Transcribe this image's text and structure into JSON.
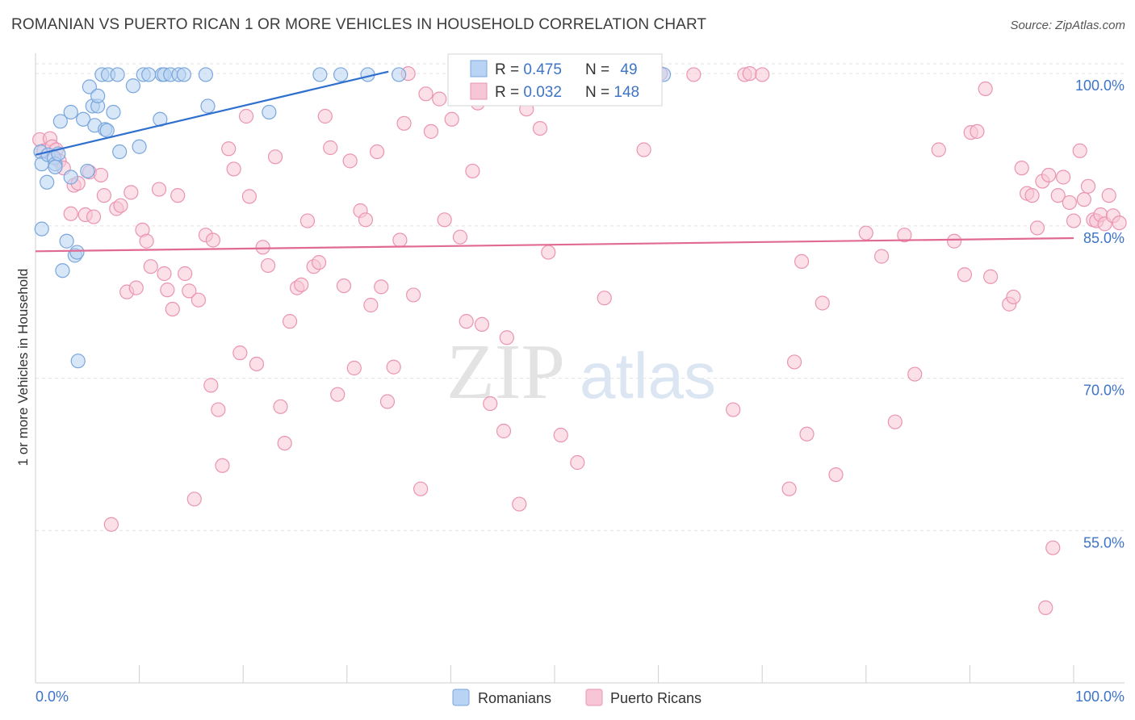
{
  "header": {
    "title": "ROMANIAN VS PUERTO RICAN 1 OR MORE VEHICLES IN HOUSEHOLD CORRELATION CHART",
    "source": "Source: ZipAtlas.com"
  },
  "watermark": {
    "zip": "ZIP",
    "atlas": "atlas"
  },
  "colors": {
    "romanian_fill": "#b8d3f3",
    "romanian_stroke": "#7aa6dc",
    "romanian_line": "#2f6fce",
    "puerto_fill": "#f7c6d6",
    "puerto_stroke": "#ea94b2",
    "puerto_line": "#e06a93",
    "axis_value": "#3e74c7",
    "grid": "#e2e2e2"
  },
  "legend": {
    "rows": [
      {
        "r_label": "R = ",
        "r_value": "0.475",
        "n_label": "N = ",
        "n_value": "49"
      },
      {
        "r_label": "R = ",
        "r_value": "0.032",
        "n_label": "N = ",
        "n_value": "148"
      }
    ]
  },
  "bottom_legend": {
    "series1": "Romanians",
    "series2": "Puerto Ricans"
  },
  "chart_data": {
    "type": "scatter",
    "title": "ROMANIAN VS PUERTO RICAN 1 OR MORE VEHICLES IN HOUSEHOLD CORRELATION CHART",
    "xlabel": "",
    "ylabel": "1 or more Vehicles in Household",
    "xlim": [
      0,
      100
    ],
    "ylim": [
      40,
      102
    ],
    "x_tick_labels": [
      "0.0%",
      "100.0%"
    ],
    "y_ticks": [
      100,
      85,
      70,
      55
    ],
    "y_tick_labels": [
      "100.0%",
      "85.0%",
      "70.0%",
      "55.0%"
    ],
    "grid": true,
    "series": [
      {
        "name": "Romanians",
        "R": 0.475,
        "N": 49,
        "trend": [
          [
            0,
            92.0
          ],
          [
            34,
            100.2
          ]
        ],
        "points": [
          [
            0.5,
            92.3
          ],
          [
            0.6,
            84.7
          ],
          [
            0.6,
            91.1
          ],
          [
            1.1,
            89.3
          ],
          [
            1.2,
            92.0
          ],
          [
            1.8,
            91.7
          ],
          [
            1.9,
            91.1
          ],
          [
            1.9,
            90.8
          ],
          [
            2.2,
            92.1
          ],
          [
            2.4,
            95.3
          ],
          [
            2.6,
            80.6
          ],
          [
            3.0,
            83.5
          ],
          [
            3.4,
            96.2
          ],
          [
            3.4,
            89.8
          ],
          [
            3.8,
            82.1
          ],
          [
            4.0,
            82.4
          ],
          [
            4.1,
            71.7
          ],
          [
            4.6,
            95.5
          ],
          [
            5.0,
            90.4
          ],
          [
            5.2,
            98.7
          ],
          [
            5.5,
            96.8
          ],
          [
            5.7,
            94.9
          ],
          [
            6.0,
            96.8
          ],
          [
            6.0,
            97.8
          ],
          [
            6.4,
            99.9
          ],
          [
            6.7,
            94.5
          ],
          [
            6.9,
            94.4
          ],
          [
            7.0,
            99.9
          ],
          [
            7.5,
            96.2
          ],
          [
            7.9,
            99.9
          ],
          [
            8.1,
            92.3
          ],
          [
            9.4,
            98.8
          ],
          [
            10.0,
            92.8
          ],
          [
            10.4,
            99.9
          ],
          [
            10.9,
            99.9
          ],
          [
            12.0,
            95.5
          ],
          [
            12.2,
            99.9
          ],
          [
            12.4,
            99.9
          ],
          [
            13.0,
            99.9
          ],
          [
            13.8,
            99.9
          ],
          [
            14.3,
            99.9
          ],
          [
            16.4,
            99.9
          ],
          [
            16.6,
            96.8
          ],
          [
            22.5,
            96.2
          ],
          [
            27.4,
            99.9
          ],
          [
            29.4,
            99.9
          ],
          [
            32.0,
            99.9
          ],
          [
            35.0,
            99.9
          ],
          [
            60.5,
            99.9
          ]
        ]
      },
      {
        "name": "Puerto Ricans",
        "R": 0.032,
        "N": 148,
        "trend": [
          [
            0,
            82.5
          ],
          [
            100,
            83.8
          ]
        ],
        "points": [
          [
            0.4,
            93.5
          ],
          [
            0.8,
            92.4
          ],
          [
            1.4,
            93.6
          ],
          [
            1.6,
            92.8
          ],
          [
            2.0,
            92.5
          ],
          [
            2.3,
            91.4
          ],
          [
            2.7,
            90.7
          ],
          [
            3.4,
            86.2
          ],
          [
            3.7,
            89.0
          ],
          [
            4.1,
            89.2
          ],
          [
            4.8,
            86.1
          ],
          [
            5.2,
            90.3
          ],
          [
            5.6,
            85.9
          ],
          [
            6.3,
            90.0
          ],
          [
            6.6,
            88.0
          ],
          [
            7.3,
            55.6
          ],
          [
            7.8,
            86.7
          ],
          [
            8.2,
            87.0
          ],
          [
            8.8,
            78.5
          ],
          [
            9.2,
            88.3
          ],
          [
            9.7,
            78.9
          ],
          [
            10.3,
            84.6
          ],
          [
            10.7,
            83.5
          ],
          [
            11.1,
            81.0
          ],
          [
            11.9,
            88.6
          ],
          [
            12.4,
            80.3
          ],
          [
            12.7,
            78.7
          ],
          [
            13.2,
            76.8
          ],
          [
            13.7,
            88.0
          ],
          [
            14.4,
            80.3
          ],
          [
            14.8,
            78.6
          ],
          [
            15.3,
            58.1
          ],
          [
            15.7,
            77.7
          ],
          [
            16.4,
            84.1
          ],
          [
            16.9,
            69.3
          ],
          [
            17.1,
            83.6
          ],
          [
            17.6,
            66.9
          ],
          [
            18.0,
            61.4
          ],
          [
            18.6,
            92.6
          ],
          [
            19.1,
            90.6
          ],
          [
            19.7,
            72.5
          ],
          [
            20.3,
            95.8
          ],
          [
            20.6,
            87.9
          ],
          [
            21.3,
            71.4
          ],
          [
            21.9,
            82.9
          ],
          [
            22.4,
            81.1
          ],
          [
            23.1,
            91.8
          ],
          [
            23.6,
            67.2
          ],
          [
            24.0,
            63.6
          ],
          [
            24.5,
            75.6
          ],
          [
            25.2,
            78.9
          ],
          [
            25.6,
            79.2
          ],
          [
            26.2,
            85.5
          ],
          [
            26.8,
            81.0
          ],
          [
            27.3,
            81.4
          ],
          [
            27.9,
            95.8
          ],
          [
            28.4,
            92.7
          ],
          [
            29.1,
            68.4
          ],
          [
            29.7,
            79.1
          ],
          [
            30.3,
            91.4
          ],
          [
            30.7,
            71.0
          ],
          [
            31.3,
            86.5
          ],
          [
            31.8,
            85.6
          ],
          [
            32.3,
            77.2
          ],
          [
            32.9,
            92.3
          ],
          [
            33.3,
            79.0
          ],
          [
            33.9,
            67.7
          ],
          [
            34.5,
            71.1
          ],
          [
            35.1,
            83.6
          ],
          [
            35.5,
            95.1
          ],
          [
            35.9,
            100.0
          ],
          [
            36.4,
            78.2
          ],
          [
            37.1,
            59.1
          ],
          [
            37.6,
            98.0
          ],
          [
            38.1,
            94.3
          ],
          [
            38.9,
            97.5
          ],
          [
            39.4,
            85.6
          ],
          [
            40.1,
            95.5
          ],
          [
            40.9,
            83.9
          ],
          [
            41.5,
            75.6
          ],
          [
            42.1,
            90.4
          ],
          [
            42.6,
            97.1
          ],
          [
            43.0,
            75.3
          ],
          [
            43.8,
            67.5
          ],
          [
            44.7,
            100.0
          ],
          [
            45.1,
            64.8
          ],
          [
            45.4,
            74.0
          ],
          [
            46.0,
            98.8
          ],
          [
            46.6,
            57.6
          ],
          [
            47.3,
            96.5
          ],
          [
            48.0,
            99.8
          ],
          [
            48.6,
            94.6
          ],
          [
            49.0,
            100.0
          ],
          [
            49.4,
            82.4
          ],
          [
            50.1,
            100.0
          ],
          [
            50.6,
            64.4
          ],
          [
            51.4,
            99.9
          ],
          [
            52.2,
            61.7
          ],
          [
            53.0,
            100.0
          ],
          [
            54.8,
            77.9
          ],
          [
            55.3,
            99.7
          ],
          [
            56.4,
            99.9
          ],
          [
            58.1,
            99.9
          ],
          [
            58.6,
            92.5
          ],
          [
            60.2,
            100.0
          ],
          [
            63.4,
            99.9
          ],
          [
            67.2,
            66.9
          ],
          [
            68.3,
            99.9
          ],
          [
            68.8,
            100.0
          ],
          [
            70.0,
            99.9
          ],
          [
            72.6,
            59.1
          ],
          [
            73.1,
            71.6
          ],
          [
            73.8,
            81.5
          ],
          [
            74.3,
            64.5
          ],
          [
            75.8,
            77.4
          ],
          [
            77.1,
            60.5
          ],
          [
            80.0,
            84.3
          ],
          [
            81.5,
            82.0
          ],
          [
            82.8,
            65.7
          ],
          [
            83.7,
            84.1
          ],
          [
            84.7,
            70.4
          ],
          [
            87.0,
            92.5
          ],
          [
            88.5,
            83.5
          ],
          [
            89.5,
            80.2
          ],
          [
            90.1,
            94.2
          ],
          [
            90.7,
            94.3
          ],
          [
            91.5,
            98.5
          ],
          [
            92.0,
            80.0
          ],
          [
            93.8,
            77.3
          ],
          [
            94.2,
            78.0
          ],
          [
            95.0,
            90.7
          ],
          [
            95.5,
            88.2
          ],
          [
            96.0,
            88.0
          ],
          [
            96.5,
            84.8
          ],
          [
            97.0,
            89.4
          ],
          [
            97.3,
            47.4
          ],
          [
            97.6,
            90.0
          ],
          [
            98.0,
            53.3
          ],
          [
            98.5,
            88.0
          ],
          [
            99.0,
            89.8
          ],
          [
            99.6,
            87.3
          ],
          [
            100.0,
            85.5
          ],
          [
            100.6,
            92.4
          ],
          [
            101.0,
            87.6
          ],
          [
            101.4,
            88.9
          ],
          [
            101.9,
            85.6
          ],
          [
            102.2,
            85.5
          ],
          [
            102.6,
            86.1
          ],
          [
            103.0,
            85.2
          ],
          [
            103.4,
            88.0
          ],
          [
            103.8,
            86.0
          ],
          [
            104.4,
            85.3
          ]
        ]
      }
    ]
  }
}
